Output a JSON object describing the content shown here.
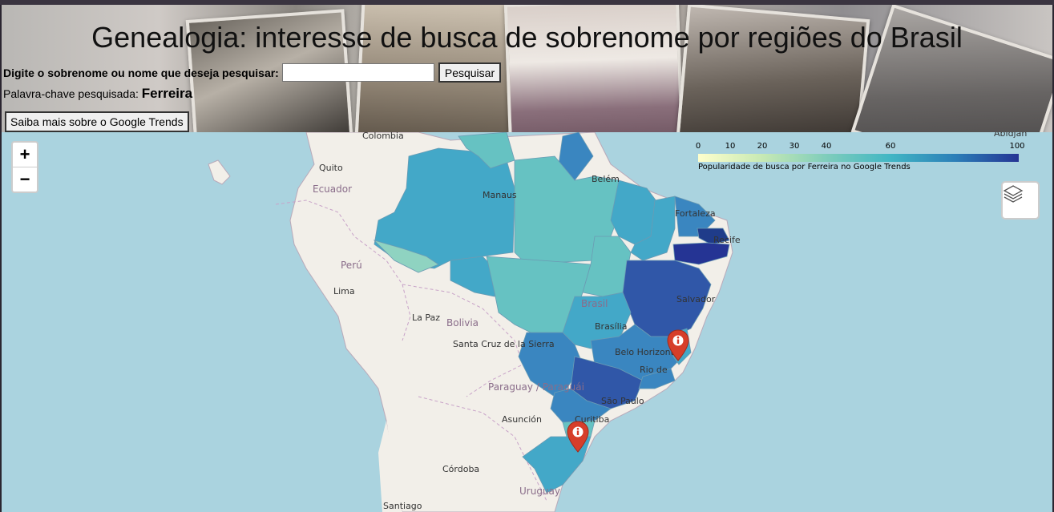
{
  "header": {
    "title": "Genealogia: interesse de busca de sobrenome por regiões do Brasil",
    "search_label": "Digite o sobrenome ou nome que deseja pesquisar:",
    "search_value": "",
    "search_button": "Pesquisar",
    "keyword_label": "Palavra-chave pesquisada:",
    "keyword_value": "Ferreira",
    "info_button": "Saiba mais sobre o Google Trends"
  },
  "map": {
    "zoom_in": "+",
    "zoom_out": "−",
    "layers_icon": "layers-icon",
    "marker_icon": "info-marker-icon",
    "marker_color": "#d63e2a",
    "city_labels": [
      "Colombia",
      "Quito",
      "Ecuador",
      "Manaus",
      "Belém",
      "Fortaleza",
      "Recife",
      "Perú",
      "Lima",
      "La Paz",
      "Bolivia",
      "Santa Cruz de la Sierra",
      "Brasil",
      "Brasília",
      "Belo Horizonte",
      "Rio de",
      "Salvador",
      "São Paulo",
      "Curitiba",
      "Paraguay / Paraguái",
      "Asunción",
      "Córdoba",
      "Uruguay",
      "Santiago",
      "Abidjan"
    ],
    "legend": {
      "ticks": [
        "0",
        "10",
        "20",
        "30",
        "40",
        "60",
        "100"
      ],
      "caption": "Popularidade de busca por Ferreira no Google Trends",
      "colors": [
        "#ffffcc",
        "#c7e9b4",
        "#7fcdbb",
        "#41b6c4",
        "#2c7fb8",
        "#253494"
      ]
    },
    "state_colors": {
      "low": "#8fd3c1",
      "mid_low": "#66c2c2",
      "mid": "#43a8c8",
      "mid_high": "#3a86c0",
      "high": "#3057a8",
      "very_high": "#1f3c8a"
    }
  }
}
